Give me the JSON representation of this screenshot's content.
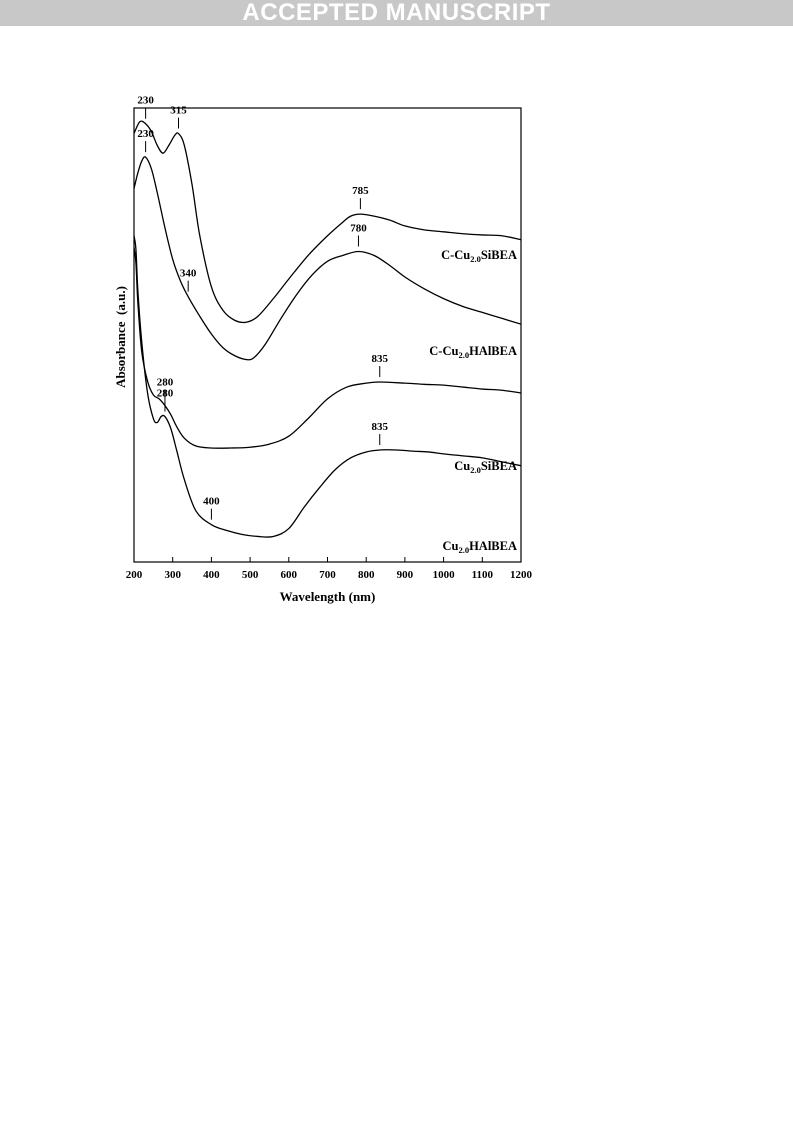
{
  "banner": {
    "text": "ACCEPTED MANUSCRIPT"
  },
  "chart_data": {
    "type": "line",
    "xlabel": "Wavelength (nm)",
    "ylabel": "Absorbance  (a.u.)",
    "xlim": [
      200,
      1200
    ],
    "xticks": [
      200,
      300,
      400,
      500,
      600,
      700,
      800,
      900,
      1000,
      1100,
      1200
    ],
    "y_ticks_shown": false,
    "grid": false,
    "legend": "none",
    "series": [
      {
        "name": "C-Cu2.0SiBEA",
        "label_main": "C-Cu",
        "label_sub": "2.0",
        "label_rest": "SiBEA",
        "color": "#000000",
        "x": [
          200,
          215,
          230,
          245,
          260,
          275,
          290,
          305,
          315,
          330,
          350,
          370,
          400,
          430,
          460,
          490,
          520,
          560,
          600,
          650,
          700,
          740,
          760,
          785,
          820,
          860,
          900,
          950,
          1000,
          1050,
          1100,
          1150,
          1200
        ],
        "y": [
          7.2,
          7.5,
          7.45,
          7.25,
          6.9,
          6.7,
          6.9,
          7.15,
          7.2,
          6.9,
          5.9,
          4.6,
          3.3,
          2.7,
          2.45,
          2.4,
          2.55,
          3.0,
          3.5,
          4.1,
          4.6,
          4.95,
          5.1,
          5.15,
          5.1,
          5.0,
          4.85,
          4.75,
          4.7,
          4.65,
          4.62,
          4.6,
          4.5
        ]
      },
      {
        "name": "C-Cu2.0HAlBEA",
        "label_main": "C-Cu",
        "label_sub": "2.0",
        "label_rest": "HAlBEA",
        "color": "#000000",
        "x": [
          200,
          210,
          220,
          230,
          245,
          260,
          280,
          300,
          320,
          340,
          370,
          400,
          430,
          460,
          490,
          510,
          540,
          580,
          620,
          660,
          700,
          740,
          780,
          820,
          860,
          900,
          950,
          1000,
          1050,
          1100,
          1150,
          1200
        ],
        "y": [
          5.8,
          6.2,
          6.5,
          6.6,
          6.3,
          5.7,
          4.8,
          4.0,
          3.45,
          3.05,
          2.55,
          2.1,
          1.75,
          1.55,
          1.45,
          1.5,
          1.85,
          2.5,
          3.1,
          3.6,
          3.95,
          4.1,
          4.2,
          4.1,
          3.85,
          3.55,
          3.25,
          3.0,
          2.8,
          2.65,
          2.5,
          2.35
        ]
      },
      {
        "name": "Cu2.0SiBEA",
        "label_main": "Cu",
        "label_sub": "2.0",
        "label_rest": "SiBEA",
        "color": "#000000",
        "x": [
          200,
          205,
          210,
          220,
          235,
          250,
          265,
          280,
          295,
          310,
          330,
          360,
          400,
          450,
          500,
          550,
          600,
          650,
          700,
          750,
          800,
          835,
          900,
          950,
          1000,
          1050,
          1100,
          1150,
          1200
        ],
        "y": [
          4.3,
          3.9,
          2.9,
          1.65,
          0.9,
          0.55,
          0.45,
          0.28,
          0.05,
          -0.25,
          -0.55,
          -0.75,
          -0.8,
          -0.8,
          -0.78,
          -0.7,
          -0.5,
          -0.05,
          0.45,
          0.75,
          0.85,
          0.88,
          0.85,
          0.82,
          0.8,
          0.75,
          0.7,
          0.67,
          0.6
        ]
      },
      {
        "name": "Cu2.0HAlBEA",
        "label_main": "Cu",
        "label_sub": "2.0",
        "label_rest": "HAlBEA",
        "color": "#000000",
        "x": [
          200,
          205,
          210,
          220,
          235,
          250,
          260,
          270,
          280,
          295,
          310,
          330,
          360,
          400,
          440,
          480,
          520,
          560,
          600,
          640,
          680,
          720,
          760,
          800,
          835,
          880,
          920,
          960,
          1000,
          1050,
          1100,
          1150,
          1200
        ],
        "y": [
          4.6,
          4.25,
          3.2,
          1.9,
          0.6,
          -0.05,
          -0.15,
          0.0,
          0.0,
          -0.3,
          -0.85,
          -1.6,
          -2.4,
          -2.75,
          -2.9,
          -3.0,
          -3.05,
          -3.05,
          -2.85,
          -2.3,
          -1.8,
          -1.35,
          -1.05,
          -0.9,
          -0.85,
          -0.85,
          -0.88,
          -0.9,
          -0.95,
          -1.0,
          -1.05,
          -1.15,
          -1.25
        ]
      }
    ],
    "annotations": [
      {
        "text": "230",
        "series": 0,
        "x": 230
      },
      {
        "text": "315",
        "series": 0,
        "x": 315
      },
      {
        "text": "785",
        "series": 0,
        "x": 785
      },
      {
        "text": "230",
        "series": 1,
        "x": 230
      },
      {
        "text": "340",
        "series": 1,
        "x": 340
      },
      {
        "text": "780",
        "series": 1,
        "x": 780
      },
      {
        "text": "280",
        "series": 2,
        "x": 280
      },
      {
        "text": "835",
        "series": 2,
        "x": 835
      },
      {
        "text": "280",
        "series": 3,
        "x": 280
      },
      {
        "text": "400",
        "series": 3,
        "x": 400
      },
      {
        "text": "835",
        "series": 3,
        "x": 835
      }
    ]
  }
}
